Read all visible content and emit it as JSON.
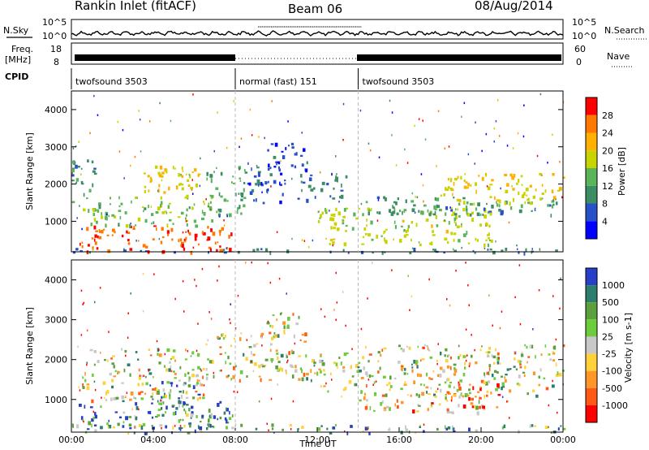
{
  "header": {
    "station": "Rankin Inlet (fitACF)",
    "beam": "Beam 06",
    "date": "08/Aug/2014"
  },
  "panel_labels": {
    "nsky": "N.Sky",
    "nsearch": "N.Search",
    "freq": "Freq.",
    "freq_unit": "[MHz]",
    "nave": "Nave",
    "cpid": "CPID"
  },
  "noise_axis": {
    "left_ticks": [
      "10^5",
      "10^0"
    ],
    "right_ticks": [
      "10^5",
      "10^0"
    ]
  },
  "freq_axis": {
    "left_ticks": [
      "18",
      "8"
    ],
    "right_ticks": [
      "60",
      "0"
    ]
  },
  "cpid_segments": [
    {
      "label": "twofsound 3503",
      "start_hour": 0,
      "end_hour": 8
    },
    {
      "label": "normal (fast) 151",
      "start_hour": 8,
      "end_hour": 14
    },
    {
      "label": "twofsound 3503",
      "start_hour": 14,
      "end_hour": 24
    }
  ],
  "chart_data": [
    {
      "type": "heatmap",
      "name": "Power",
      "ylabel": "Slant Range [km]",
      "xlim_hours": [
        0,
        24
      ],
      "ylim_km": [
        180,
        4500
      ],
      "yticks": [
        1000,
        2000,
        3000,
        4000
      ],
      "colorbar_label": "Power [dB]",
      "colorbar_ticks": [
        "28",
        "24",
        "20",
        "16",
        "12",
        "8",
        "4"
      ],
      "colorbar_colors": [
        "#ff0000",
        "#ff7800",
        "#ffb000",
        "#c8d400",
        "#5ab45a",
        "#3c8c64",
        "#2850c8",
        "#0000ff"
      ],
      "scale_range": [
        0,
        30
      ],
      "regions": [
        {
          "t": [
            0.3,
            8.0
          ],
          "r": [
            200,
            900
          ],
          "level": 26
        },
        {
          "t": [
            0.5,
            7.0
          ],
          "r": [
            900,
            1700
          ],
          "level": 14
        },
        {
          "t": [
            0.0,
            1.2
          ],
          "r": [
            1500,
            2700
          ],
          "level": 10
        },
        {
          "t": [
            3.5,
            6.5
          ],
          "r": [
            1700,
            2500
          ],
          "level": 18
        },
        {
          "t": [
            6.5,
            8.5
          ],
          "r": [
            1200,
            2500
          ],
          "level": 12
        },
        {
          "t": [
            8.5,
            10.5
          ],
          "r": [
            1500,
            2600
          ],
          "level": 6
        },
        {
          "t": [
            9.5,
            11.5
          ],
          "r": [
            2400,
            3200
          ],
          "level": 5
        },
        {
          "t": [
            11.0,
            13.5
          ],
          "r": [
            1600,
            2300
          ],
          "level": 8
        },
        {
          "t": [
            12.0,
            20.5
          ],
          "r": [
            400,
            1400
          ],
          "level": 16
        },
        {
          "t": [
            14.0,
            24.0
          ],
          "r": [
            1200,
            1700
          ],
          "level": 10
        },
        {
          "t": [
            18.0,
            24.0
          ],
          "r": [
            1500,
            2300
          ],
          "level": 18
        },
        {
          "t": [
            0.0,
            24.0
          ],
          "r": [
            180,
            300
          ],
          "level": 8
        }
      ]
    },
    {
      "type": "heatmap",
      "name": "Velocity",
      "ylabel": "Slant Range [km]",
      "xlabel": "Time UT",
      "xlim_hours": [
        0,
        24
      ],
      "ylim_km": [
        180,
        4500
      ],
      "yticks": [
        1000,
        2000,
        3000,
        4000
      ],
      "xticks": [
        "00:00",
        "04:00",
        "08:00",
        "12:00",
        "16:00",
        "20:00",
        "00:00"
      ],
      "colorbar_label": "Velocity [m s-1]",
      "colorbar_ticks": [
        "1000",
        "500",
        "100",
        "25",
        "-25",
        "-100",
        "-500",
        "-1000"
      ],
      "colorbar_colors": [
        "#2840c8",
        "#2c7d6c",
        "#5aa03c",
        "#6ccc3c",
        "#c8c8c8",
        "#ffd23c",
        "#ff9628",
        "#ff5a14",
        "#ff0000"
      ],
      "regions": [
        {
          "t": [
            0.3,
            8.0
          ],
          "r": [
            300,
            1000
          ],
          "level": 1
        },
        {
          "t": [
            3.8,
            6.5
          ],
          "r": [
            600,
            1500
          ],
          "level": 2
        },
        {
          "t": [
            0.5,
            6.5
          ],
          "r": [
            1000,
            2300
          ],
          "level": 4
        },
        {
          "t": [
            6.5,
            11.5
          ],
          "r": [
            1500,
            2700
          ],
          "level": 4
        },
        {
          "t": [
            9.5,
            11.5
          ],
          "r": [
            2600,
            3200
          ],
          "level": 4
        },
        {
          "t": [
            11.5,
            14.0
          ],
          "r": [
            1200,
            2200
          ],
          "level": 4
        },
        {
          "t": [
            14.0,
            24.0
          ],
          "r": [
            1100,
            2400
          ],
          "level": 4
        },
        {
          "t": [
            14.0,
            20.0
          ],
          "r": [
            700,
            1200
          ],
          "level": 5
        },
        {
          "t": [
            18.5,
            21.0
          ],
          "r": [
            800,
            1500
          ],
          "level": 6
        },
        {
          "t": [
            0.0,
            24.0
          ],
          "r": [
            180,
            400
          ],
          "level": 2
        }
      ]
    }
  ]
}
